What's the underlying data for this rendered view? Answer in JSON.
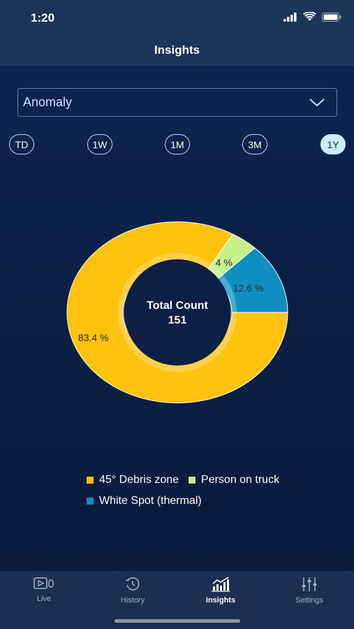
{
  "status": {
    "time": "1:20"
  },
  "header": {
    "title": "Insights"
  },
  "filter": {
    "selected": "Anomaly"
  },
  "ranges": [
    {
      "label": "TD",
      "active": false
    },
    {
      "label": "1W",
      "active": false
    },
    {
      "label": "1M",
      "active": false
    },
    {
      "label": "3M",
      "active": false
    },
    {
      "label": "1Y",
      "active": true
    }
  ],
  "chart_data": {
    "type": "pie",
    "total_label": "Total Count",
    "total_value": "151",
    "slices": [
      {
        "name": "45° Debris zone",
        "value": 83.4,
        "label": "83.4 %",
        "color": "#ffc20e"
      },
      {
        "name": "Person on truck",
        "value": 4,
        "label": "4 %",
        "color": "#c6f08a"
      },
      {
        "name": "White Spot (thermal)",
        "value": 12.6,
        "label": "12.6 %",
        "color": "#0e8fc0"
      }
    ],
    "legend": [
      {
        "label": "45° Debris zone",
        "color": "#ffc20e"
      },
      {
        "label": "Person on truck",
        "color": "#c6f08a"
      },
      {
        "label": "White Spot (thermal)",
        "color": "#0e8fc0"
      }
    ]
  },
  "tabs": [
    {
      "label": "Live",
      "icon": "live-video-icon",
      "active": false
    },
    {
      "label": "History",
      "icon": "history-clock-icon",
      "active": false
    },
    {
      "label": "Insights",
      "icon": "insights-chart-icon",
      "active": true
    },
    {
      "label": "Settings",
      "icon": "settings-sliders-icon",
      "active": false
    }
  ]
}
